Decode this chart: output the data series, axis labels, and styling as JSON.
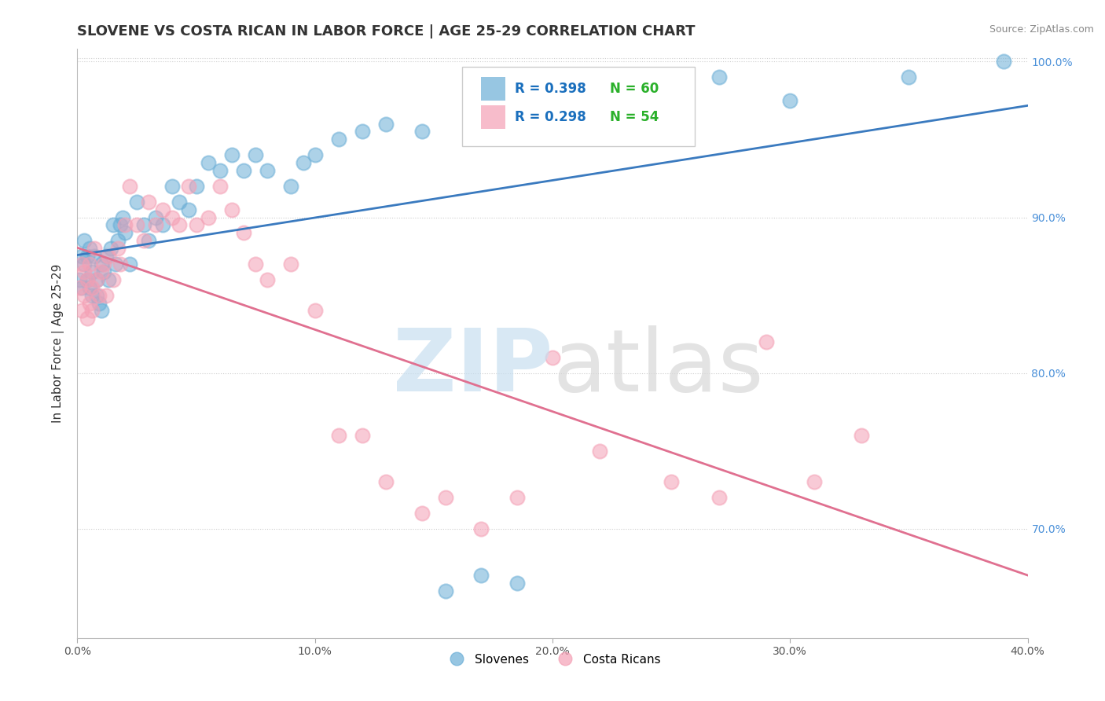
{
  "title": "SLOVENE VS COSTA RICAN IN LABOR FORCE | AGE 25-29 CORRELATION CHART",
  "source_text": "Source: ZipAtlas.com",
  "ylabel": "In Labor Force | Age 25-29",
  "xlim": [
    0.0,
    0.4
  ],
  "ylim": [
    0.63,
    1.008
  ],
  "xtick_vals": [
    0.0,
    0.1,
    0.2,
    0.3,
    0.4
  ],
  "xtick_labels": [
    "0.0%",
    "10.0%",
    "20.0%",
    "30.0%",
    "40.0%"
  ],
  "ytick_vals": [
    0.7,
    0.8,
    0.9,
    1.0
  ],
  "ytick_labels": [
    "70.0%",
    "80.0%",
    "90.0%",
    "100.0%"
  ],
  "grid_ytick_vals": [
    0.7,
    0.8,
    0.9,
    1.0
  ],
  "slovene_color": "#6baed6",
  "costa_rican_color": "#f4a0b5",
  "slovene_line_color": "#3a7abf",
  "costa_rican_line_color": "#e07090",
  "slovene_R": 0.398,
  "slovene_N": 60,
  "costa_rican_R": 0.298,
  "costa_rican_N": 54,
  "legend_R_color": "#1a6fbd",
  "legend_N_color": "#2ab02a",
  "background_color": "#ffffff",
  "title_fontsize": 13,
  "axis_label_fontsize": 11,
  "tick_fontsize": 10,
  "slovene_x": [
    0.001,
    0.002,
    0.002,
    0.003,
    0.003,
    0.004,
    0.004,
    0.005,
    0.005,
    0.006,
    0.006,
    0.007,
    0.008,
    0.008,
    0.009,
    0.01,
    0.01,
    0.011,
    0.012,
    0.013,
    0.014,
    0.015,
    0.016,
    0.017,
    0.018,
    0.019,
    0.02,
    0.022,
    0.025,
    0.028,
    0.03,
    0.033,
    0.036,
    0.04,
    0.043,
    0.047,
    0.05,
    0.055,
    0.06,
    0.065,
    0.07,
    0.075,
    0.08,
    0.09,
    0.095,
    0.1,
    0.11,
    0.12,
    0.13,
    0.145,
    0.155,
    0.17,
    0.185,
    0.2,
    0.22,
    0.25,
    0.27,
    0.3,
    0.35,
    0.39
  ],
  "slovene_y": [
    0.86,
    0.875,
    0.855,
    0.87,
    0.885,
    0.86,
    0.875,
    0.855,
    0.88,
    0.865,
    0.85,
    0.875,
    0.86,
    0.85,
    0.845,
    0.87,
    0.84,
    0.865,
    0.875,
    0.86,
    0.88,
    0.895,
    0.87,
    0.885,
    0.895,
    0.9,
    0.89,
    0.87,
    0.91,
    0.895,
    0.885,
    0.9,
    0.895,
    0.92,
    0.91,
    0.905,
    0.92,
    0.935,
    0.93,
    0.94,
    0.93,
    0.94,
    0.93,
    0.92,
    0.935,
    0.94,
    0.95,
    0.955,
    0.96,
    0.955,
    0.66,
    0.67,
    0.665,
    0.96,
    0.97,
    0.98,
    0.99,
    0.975,
    0.99,
    1.0
  ],
  "costa_rican_x": [
    0.001,
    0.002,
    0.002,
    0.003,
    0.003,
    0.004,
    0.004,
    0.005,
    0.005,
    0.006,
    0.006,
    0.007,
    0.008,
    0.009,
    0.01,
    0.011,
    0.012,
    0.013,
    0.015,
    0.017,
    0.018,
    0.02,
    0.022,
    0.025,
    0.028,
    0.03,
    0.033,
    0.036,
    0.04,
    0.043,
    0.047,
    0.05,
    0.055,
    0.06,
    0.065,
    0.07,
    0.075,
    0.08,
    0.09,
    0.1,
    0.11,
    0.12,
    0.13,
    0.145,
    0.155,
    0.17,
    0.185,
    0.2,
    0.22,
    0.25,
    0.27,
    0.29,
    0.31,
    0.33
  ],
  "costa_rican_y": [
    0.855,
    0.87,
    0.84,
    0.865,
    0.85,
    0.835,
    0.86,
    0.845,
    0.87,
    0.855,
    0.84,
    0.88,
    0.86,
    0.85,
    0.865,
    0.87,
    0.85,
    0.875,
    0.86,
    0.88,
    0.87,
    0.895,
    0.92,
    0.895,
    0.885,
    0.91,
    0.895,
    0.905,
    0.9,
    0.895,
    0.92,
    0.895,
    0.9,
    0.92,
    0.905,
    0.89,
    0.87,
    0.86,
    0.87,
    0.84,
    0.76,
    0.76,
    0.73,
    0.71,
    0.72,
    0.7,
    0.72,
    0.81,
    0.75,
    0.73,
    0.72,
    0.82,
    0.73,
    0.76
  ]
}
